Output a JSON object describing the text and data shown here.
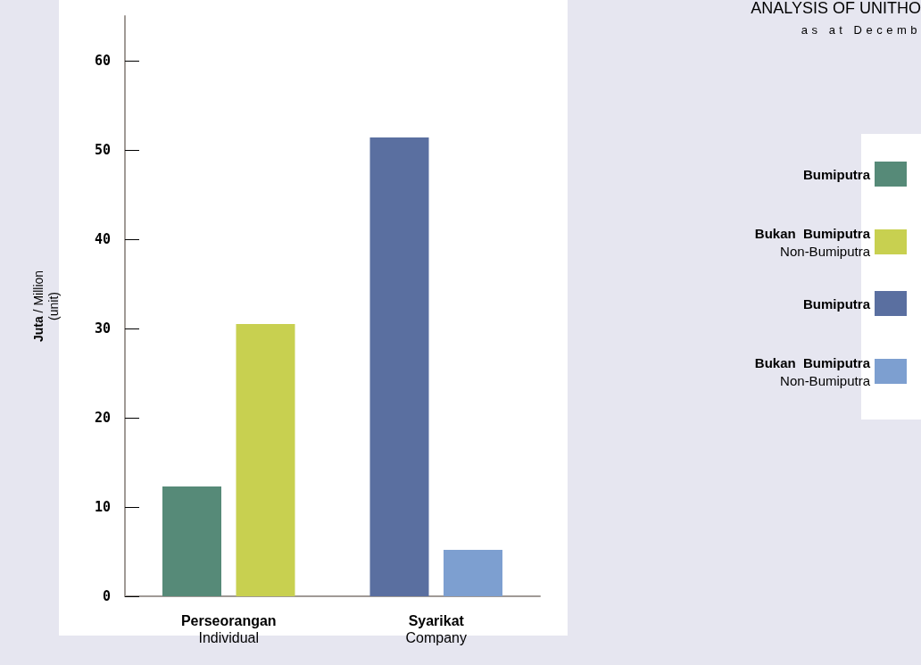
{
  "chart_data": {
    "type": "bar",
    "title": "ANALYSIS OF UNITHO",
    "subtitle": "as at Decemb",
    "ylabel": "Juta / Million\n(unit)",
    "categories": [
      "Perseorangan\nIndividual",
      "Syarikat\nCompany"
    ],
    "series": [
      {
        "name": "Bumiputra",
        "color": "#568a78",
        "values": [
          12.3,
          null
        ]
      },
      {
        "name": "Bukan  Bumiputra\nNon-Bumiputra",
        "color": "#c8d050",
        "values": [
          30.5,
          null
        ]
      },
      {
        "name": "Bumiputra",
        "color": "#5a6fa0",
        "values": [
          null,
          51.4
        ]
      },
      {
        "name": "Bukan  Bumiputra\nNon-Bumiputra",
        "color": "#7d9fd0",
        "values": [
          null,
          5.2
        ]
      }
    ],
    "ylim": [
      0,
      65
    ],
    "yticks": [
      0,
      10,
      20,
      30,
      40,
      50,
      60
    ],
    "grid": false,
    "legend": "right"
  }
}
